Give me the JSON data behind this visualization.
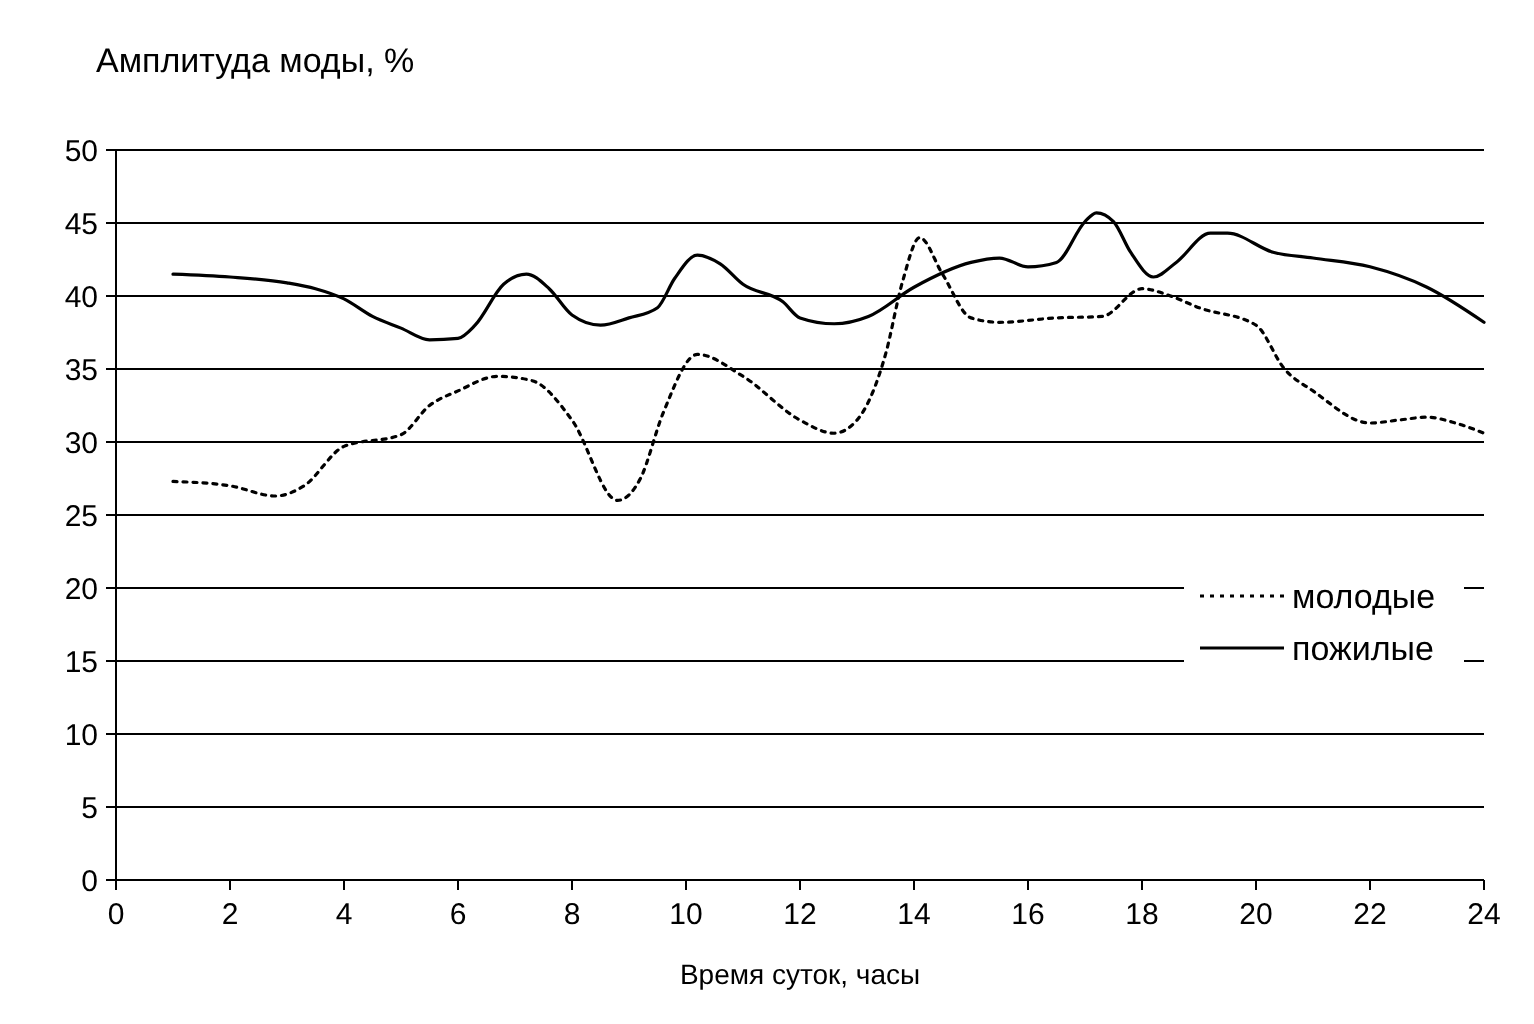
{
  "chart_data": {
    "type": "line",
    "ylabel": "Амплитуда моды, %",
    "xlabel": "Время суток, часы",
    "xlim": [
      0,
      24
    ],
    "xticks": [
      0,
      2,
      4,
      6,
      8,
      10,
      12,
      14,
      16,
      18,
      20,
      22,
      24
    ],
    "ylim": [
      0,
      50
    ],
    "yticks": [
      0,
      5,
      10,
      15,
      20,
      25,
      30,
      35,
      40,
      45,
      50
    ],
    "grid": "y",
    "legend": "right",
    "series": [
      {
        "name": "молодые",
        "color": "#000000",
        "line_style": "dotted",
        "x": [
          1,
          2,
          2.8,
          3.3,
          4,
          5,
          5.5,
          6,
          6.7,
          7.3,
          8,
          8.8,
          9.2,
          9.6,
          10.2,
          11,
          12,
          12.6,
          13,
          13.5,
          13.8,
          14.1,
          14.5,
          15,
          15.5,
          16.5,
          17.3,
          18,
          18.5,
          19,
          20,
          20.5,
          21,
          22,
          22.5,
          23,
          23.5,
          24
        ],
        "values": [
          27.3,
          27,
          26.3,
          27,
          29.7,
          30.5,
          32.5,
          33.5,
          34.5,
          34.2,
          31.5,
          26,
          27.5,
          32,
          36,
          34.5,
          31.5,
          30.6,
          31.5,
          36,
          41,
          44,
          41.5,
          38.5,
          38.2,
          38.5,
          38.6,
          40.5,
          40,
          39.2,
          38,
          35,
          33.5,
          31.3,
          31.5,
          31.7,
          31.3,
          30.6
        ]
      },
      {
        "name": "пожилые",
        "color": "#000000",
        "line_style": "solid",
        "x": [
          1,
          2,
          3,
          3.5,
          4,
          4.5,
          5,
          5.5,
          6,
          6.3,
          6.8,
          7.2,
          7.6,
          8,
          8.5,
          9,
          9.5,
          9.8,
          10.2,
          10.6,
          11,
          11.7,
          12,
          12.6,
          13.2,
          14,
          15,
          15.5,
          16,
          16.5,
          17,
          17.2,
          17.5,
          17.8,
          18.2,
          18.6,
          19.2,
          19.5,
          20.3,
          21,
          22,
          23,
          24
        ],
        "values": [
          41.5,
          41.3,
          40.9,
          40.5,
          39.8,
          38.6,
          37.8,
          37,
          37.1,
          38,
          40.8,
          41.5,
          40.5,
          38.7,
          38,
          38.5,
          39.2,
          41.2,
          42.8,
          42.2,
          40.8,
          39.6,
          38.5,
          38.1,
          38.6,
          40.6,
          42.3,
          42.6,
          42,
          42.3,
          45.1,
          45.7,
          45.1,
          43,
          41.3,
          42.3,
          44.3,
          44.3,
          43,
          42.6,
          42,
          40.6,
          38.2
        ]
      }
    ]
  }
}
